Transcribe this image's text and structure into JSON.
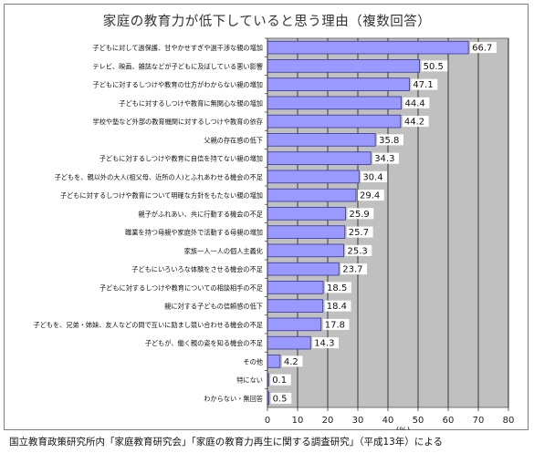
{
  "chart_data": {
    "type": "bar",
    "orientation": "horizontal",
    "title": "家庭の教育力が低下していると思う理由（複数回答）",
    "categories": [
      "子どもに対して過保護、甘やかせすぎや過干渉な親の増加",
      "テレビ、映画、雑誌などが子どもに及ぼしている悪い影響",
      "子どもに対するしつけや教育の仕方がわからない親の増加",
      "子どもに対するしつけや教育に無関心な親の増加",
      "学校や塾など外部の教育機関に対するしつけや教育の依存",
      "父親の存在感の低下",
      "子どもに対するしつけや教育に自信を持てない親の増加",
      "子どもを、親以外の大人(祖父母、近所の人)とふれあわせる機会の不足",
      "子どもに対するしつけや教育について明確な方針をもたない親の増加",
      "親子がふれあい、共に行動する機会の不足",
      "職業を持つ母親や家庭外で活動する母親の増加",
      "家族一人一人の個人主義化",
      "子どもにいろいろな体験をさせる機会の不足",
      "子どもに対するしつけや教育についての相談相手の不足",
      "親に対する子どもの信頼感の低下",
      "子どもを、兄弟・姉妹、友人などの間で互いに励まし競い合わせる機会の不足",
      "子どもが、働く親の姿を知る機会の不足",
      "その他",
      "特にない",
      "わからない・無回答"
    ],
    "values": [
      66.7,
      50.5,
      47.1,
      44.4,
      44.2,
      35.8,
      34.3,
      30.4,
      29.4,
      25.9,
      25.7,
      25.3,
      23.7,
      18.5,
      18.4,
      17.8,
      14.3,
      4.2,
      0.1,
      0.5
    ],
    "value_labels": [
      "66.7",
      "50.5",
      "47.1",
      "44.4",
      "44.2",
      "35.8",
      "34.3",
      "30.4",
      "29.4",
      "25.9",
      "25.7",
      "25.3",
      "23.7",
      "18.5",
      "18.4",
      "17.8",
      "14.3",
      "4.2",
      "0.1",
      "0.5"
    ],
    "xlim": [
      0,
      80
    ],
    "x_ticks": [
      0,
      10,
      20,
      30,
      40,
      50,
      60,
      70,
      80
    ],
    "x_unit_label": "(%)",
    "grid": true,
    "legend": "none"
  },
  "colors": {
    "plot_background": "#c0c0c0",
    "bar_fill": "#9999ff",
    "bar_edge": "#333399",
    "grid_line": "#000000"
  },
  "footer": {
    "source": "国立教育政策研究所内「家庭教育研究会」「家庭の教育力再生に関する調査研究」（平成13年）による"
  }
}
